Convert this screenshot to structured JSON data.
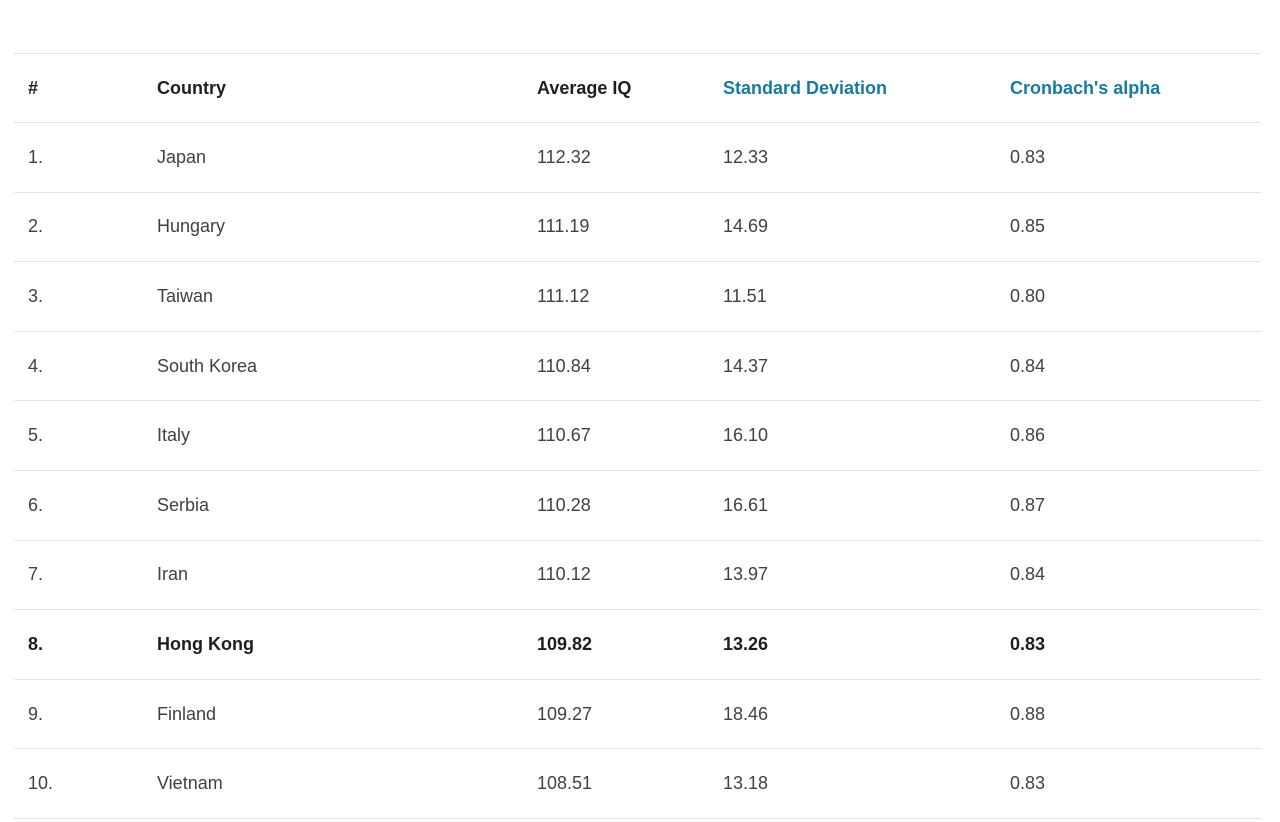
{
  "page": {
    "background": "#ffffff"
  },
  "colors": {
    "header_text": "#1f1f1f",
    "header_link_text": "#187a9e",
    "row_text": "#414141",
    "highlight_row_text": "#1d1d1d",
    "divider": "#e1e4e8"
  },
  "table": {
    "columns": [
      {
        "id": "rank",
        "label": "#",
        "variant": "plain"
      },
      {
        "id": "country",
        "label": "Country",
        "variant": "plain"
      },
      {
        "id": "avg_iq",
        "label": "Average IQ",
        "variant": "plain"
      },
      {
        "id": "std_dev",
        "label": "Standard Deviation",
        "variant": "link"
      },
      {
        "id": "cronbach",
        "label": "Cronbach's alpha",
        "variant": "link"
      }
    ],
    "rows": [
      {
        "rank": "1.",
        "country": "Japan",
        "avg_iq": "112.32",
        "std_dev": "12.33",
        "cronbach": "0.83",
        "highlighted": false
      },
      {
        "rank": "2.",
        "country": "Hungary",
        "avg_iq": "111.19",
        "std_dev": "14.69",
        "cronbach": "0.85",
        "highlighted": false
      },
      {
        "rank": "3.",
        "country": "Taiwan",
        "avg_iq": "111.12",
        "std_dev": "11.51",
        "cronbach": "0.80",
        "highlighted": false
      },
      {
        "rank": "4.",
        "country": "South Korea",
        "avg_iq": "110.84",
        "std_dev": "14.37",
        "cronbach": "0.84",
        "highlighted": false
      },
      {
        "rank": "5.",
        "country": "Italy",
        "avg_iq": "110.67",
        "std_dev": "16.10",
        "cronbach": "0.86",
        "highlighted": false
      },
      {
        "rank": "6.",
        "country": "Serbia",
        "avg_iq": "110.28",
        "std_dev": "16.61",
        "cronbach": "0.87",
        "highlighted": false
      },
      {
        "rank": "7.",
        "country": "Iran",
        "avg_iq": "110.12",
        "std_dev": "13.97",
        "cronbach": "0.84",
        "highlighted": false
      },
      {
        "rank": "8.",
        "country": "Hong Kong",
        "avg_iq": "109.82",
        "std_dev": "13.26",
        "cronbach": "0.83",
        "highlighted": true
      },
      {
        "rank": "9.",
        "country": "Finland",
        "avg_iq": "109.27",
        "std_dev": "18.46",
        "cronbach": "0.88",
        "highlighted": false
      },
      {
        "rank": "10.",
        "country": "Vietnam",
        "avg_iq": "108.51",
        "std_dev": "13.18",
        "cronbach": "0.83",
        "highlighted": false
      }
    ]
  }
}
